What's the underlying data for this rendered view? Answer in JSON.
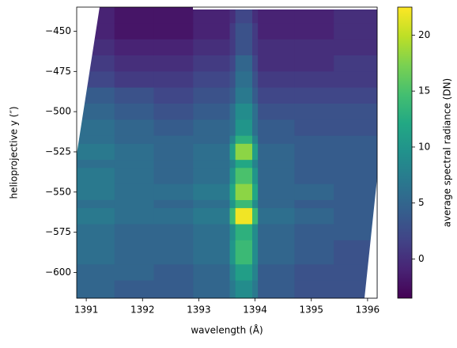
{
  "chart_data": {
    "type": "heatmap",
    "xlabel": "wavelength (Å)",
    "ylabel": "helioprojective y (″)",
    "colorbar_label": "average spectral radiance (DN)",
    "colormap": "viridis",
    "xlim": [
      1390.83,
      1396.17
    ],
    "ylim": [
      -616,
      -435
    ],
    "clim": [
      -3.5,
      22.5
    ],
    "xticks": [
      1391,
      1392,
      1393,
      1394,
      1395,
      1396
    ],
    "yticks": [
      {
        "value": -450,
        "label": "−450"
      },
      {
        "value": -475,
        "label": "−475"
      },
      {
        "value": -500,
        "label": "−500"
      },
      {
        "value": -525,
        "label": "−525"
      },
      {
        "value": -550,
        "label": "−550"
      },
      {
        "value": -575,
        "label": "−575"
      },
      {
        "value": -600,
        "label": "−600"
      }
    ],
    "cticks": [
      0,
      5,
      10,
      15,
      20
    ],
    "x_edges": [
      1390.83,
      1391.5,
      1392.2,
      1392.9,
      1393.55,
      1393.65,
      1393.95,
      1394.05,
      1394.7,
      1395.4,
      1396.17
    ],
    "y_edges": [
      -435,
      -445,
      -455,
      -465,
      -475,
      -485,
      -495,
      -505,
      -515,
      -520,
      -530,
      -535,
      -545,
      -555,
      -560,
      -570,
      -580,
      -595,
      -605,
      -616
    ],
    "values": [
      [
        -1,
        -2,
        -2,
        -1,
        0,
        2,
        0,
        -1,
        -1,
        0
      ],
      [
        -1,
        -2,
        -2,
        -1,
        1,
        3,
        1,
        -1,
        -1,
        0
      ],
      [
        0,
        -1,
        -1,
        0,
        1,
        3,
        1,
        0,
        0,
        0
      ],
      [
        1,
        0,
        0,
        1,
        2,
        5,
        2,
        0,
        0,
        1
      ],
      [
        2,
        1,
        1,
        2,
        3,
        6,
        3,
        1,
        1,
        1
      ],
      [
        4,
        3,
        2,
        3,
        4,
        7,
        4,
        2,
        2,
        2
      ],
      [
        5,
        4,
        3,
        4,
        6,
        9,
        6,
        3,
        3,
        3
      ],
      [
        6,
        5,
        4,
        5,
        6,
        10,
        6,
        4,
        3,
        3
      ],
      [
        6,
        5,
        5,
        5,
        8,
        13,
        8,
        4,
        4,
        4
      ],
      [
        7,
        6,
        5,
        6,
        11,
        18,
        11,
        5,
        4,
        4
      ],
      [
        6,
        6,
        5,
        6,
        8,
        12,
        8,
        5,
        4,
        4
      ],
      [
        7,
        6,
        5,
        6,
        10,
        15,
        10,
        5,
        4,
        4
      ],
      [
        7,
        6,
        6,
        7,
        12,
        18,
        12,
        5,
        5,
        4
      ],
      [
        6,
        6,
        5,
        6,
        10,
        14,
        9,
        5,
        4,
        4
      ],
      [
        7,
        6,
        6,
        7,
        14,
        22,
        14,
        6,
        5,
        4
      ],
      [
        6,
        5,
        5,
        6,
        9,
        13,
        9,
        5,
        4,
        4
      ],
      [
        6,
        5,
        5,
        6,
        10,
        14,
        9,
        5,
        4,
        3
      ],
      [
        5,
        5,
        4,
        5,
        8,
        11,
        8,
        4,
        3,
        3
      ],
      [
        5,
        4,
        4,
        5,
        7,
        9,
        7,
        4,
        3,
        3
      ]
    ]
  }
}
